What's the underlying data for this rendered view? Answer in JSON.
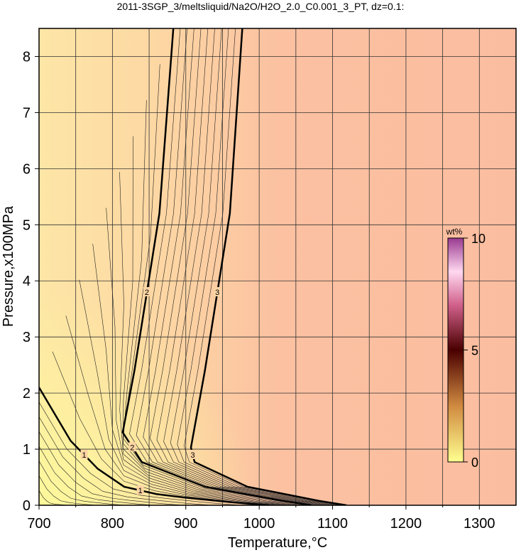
{
  "chart_data": {
    "type": "contour",
    "title": "2011-3SGP_3/meltsliquid/Na2O/H2O_2.0_C0.001_3_PT, dz=0.1:",
    "x_label": "Temperature,°C",
    "y_label": "Pressure,x100MPa",
    "xlim": [
      700,
      1350
    ],
    "ylim": [
      0,
      8.5
    ],
    "xticks": [
      700,
      800,
      900,
      1000,
      1100,
      1200,
      1300
    ],
    "x_minor_ticks": [
      750,
      850,
      950,
      1050,
      1150,
      1250
    ],
    "yticks": [
      0,
      1,
      2,
      3,
      4,
      5,
      6,
      7,
      8
    ],
    "grid": true,
    "contours": [
      {
        "level": 1,
        "x": [
          700,
          743,
          780,
          816,
          860,
          897,
          965,
          1013
        ],
        "y": [
          2.1,
          1.15,
          0.65,
          0.33,
          0.2,
          0.14,
          0.05,
          0
        ]
      },
      {
        "level": 2,
        "x": [
          883,
          864,
          830,
          814,
          840,
          926,
          1032,
          1071
        ],
        "y": [
          8.5,
          5.2,
          2.4,
          1.3,
          0.77,
          0.33,
          0.08,
          0
        ]
      },
      {
        "level": 3,
        "x": [
          977,
          960,
          926,
          907,
          912,
          984,
          1081,
          1119
        ],
        "y": [
          8.5,
          5.2,
          2.4,
          1.03,
          0.77,
          0.33,
          0.08,
          0
        ]
      }
    ],
    "colorbar": {
      "label": "wt%",
      "lim": [
        0,
        10
      ],
      "ticks": [
        0,
        5,
        10
      ]
    }
  }
}
